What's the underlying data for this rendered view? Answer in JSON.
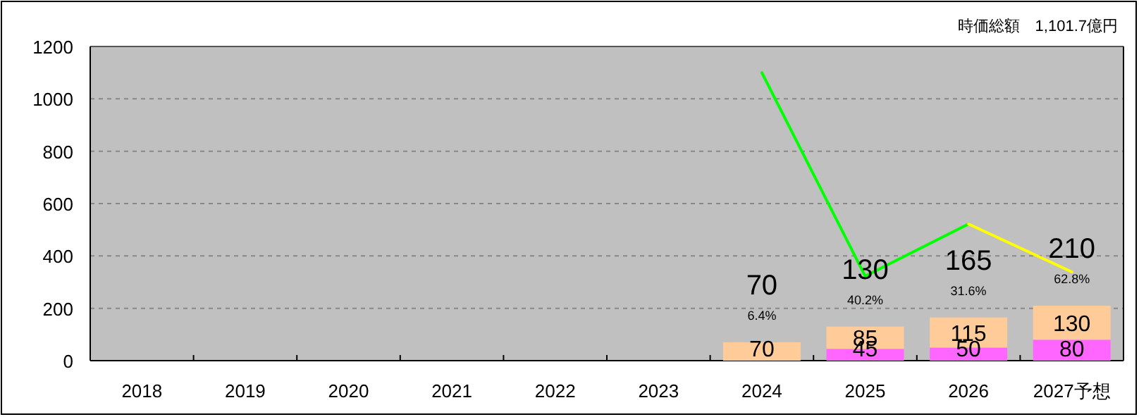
{
  "chart_data": {
    "type": "bar",
    "stacked": true,
    "categories": [
      "2018",
      "2019",
      "2020",
      "2021",
      "2022",
      "2023",
      "2024",
      "2025",
      "2026",
      "2027予想"
    ],
    "series": [
      {
        "color": "#ff66ff",
        "values": [
          null,
          null,
          null,
          null,
          null,
          null,
          null,
          45,
          50,
          80
        ],
        "value_labels": [
          null,
          null,
          null,
          null,
          null,
          null,
          null,
          "45",
          "50",
          "80"
        ]
      },
      {
        "color": "#ffcc99",
        "values": [
          null,
          null,
          null,
          null,
          null,
          null,
          70,
          85,
          115,
          130
        ],
        "value_labels": [
          null,
          null,
          null,
          null,
          null,
          null,
          "70",
          "85",
          "115",
          "130"
        ]
      },
      {
        "type": "line",
        "color": "#00ff00",
        "values": [
          null,
          null,
          null,
          null,
          null,
          null,
          1100,
          323,
          522,
          null
        ]
      },
      {
        "type": "line",
        "color": "#ffff00",
        "values": [
          null,
          null,
          null,
          null,
          null,
          null,
          null,
          null,
          522,
          339
        ]
      }
    ],
    "totals": [
      null,
      null,
      null,
      null,
      null,
      null,
      "70",
      "130",
      "165",
      "210"
    ],
    "annotations": [
      "時価総額　1,101.7億円",
      {
        "text": "6.4%",
        "x": "2024",
        "y": 70
      },
      {
        "text": "40.2%",
        "x": "2025",
        "y": 130
      },
      {
        "text": "31.6%",
        "x": "2026",
        "y": 165
      },
      {
        "text": "62.8%",
        "x": "2027予想",
        "y": 210
      }
    ],
    "ylim": [
      0,
      1200
    ],
    "yticks": [
      0,
      200,
      400,
      600,
      800,
      1000,
      1200
    ],
    "grid": "y"
  }
}
